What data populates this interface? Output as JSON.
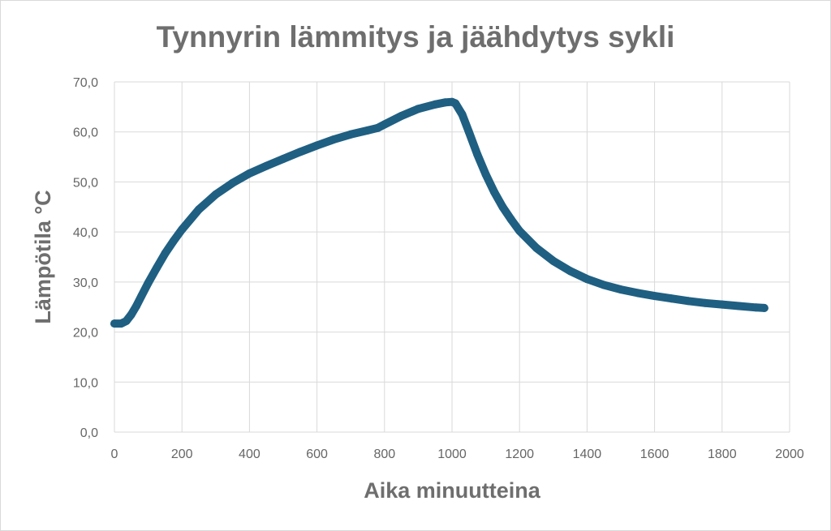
{
  "chart_data": {
    "type": "scatter",
    "title": "Tynnyrin lämmitys ja jäähdytys sykli",
    "xlabel": "Aika minuutteina",
    "ylabel": "Lämpötila °C",
    "xlim": [
      0,
      2000
    ],
    "ylim": [
      0,
      70
    ],
    "x_ticks": [
      "0",
      "200",
      "400",
      "600",
      "800",
      "1000",
      "1200",
      "1400",
      "1600",
      "1800",
      "2000"
    ],
    "y_ticks": [
      "0,0",
      "10,0",
      "20,0",
      "30,0",
      "40,0",
      "50,0",
      "60,0",
      "70,0"
    ],
    "grid": true,
    "legend": "none",
    "series_color": "#1f5f82",
    "series": [
      {
        "x": [
          0,
          20,
          35,
          50,
          65,
          80,
          100,
          125,
          150,
          175,
          200,
          250,
          300,
          350,
          400,
          450,
          500,
          550,
          600,
          650,
          700,
          750,
          780,
          800,
          850,
          900,
          950,
          980,
          1000,
          1010,
          1030,
          1050,
          1075,
          1100,
          1125,
          1150,
          1175,
          1200,
          1250,
          1300,
          1350,
          1400,
          1450,
          1500,
          1550,
          1600,
          1650,
          1700,
          1750,
          1800,
          1850,
          1900,
          1925
        ],
        "y": [
          21.7,
          21.7,
          22.2,
          23.5,
          25.2,
          27.2,
          29.8,
          32.8,
          35.7,
          38.2,
          40.5,
          44.5,
          47.5,
          49.8,
          51.7,
          53.2,
          54.6,
          56.0,
          57.3,
          58.5,
          59.5,
          60.3,
          60.8,
          61.5,
          63.2,
          64.6,
          65.5,
          65.9,
          66.0,
          65.7,
          63.5,
          60.0,
          55.5,
          51.5,
          48.0,
          45.0,
          42.5,
          40.2,
          36.8,
          34.2,
          32.2,
          30.6,
          29.4,
          28.5,
          27.8,
          27.2,
          26.7,
          26.2,
          25.8,
          25.5,
          25.2,
          24.9,
          24.8
        ]
      }
    ]
  }
}
